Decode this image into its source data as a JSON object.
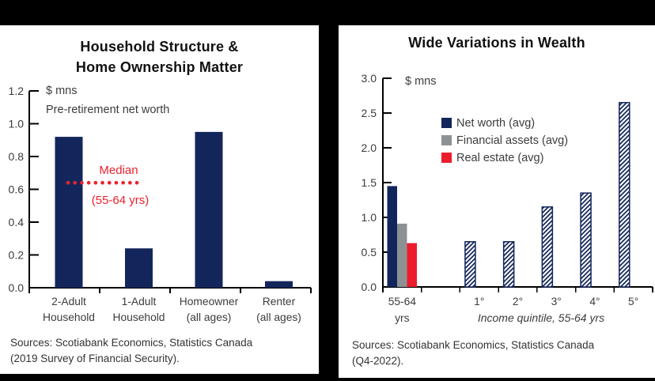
{
  "page": {
    "background_color": "#000000",
    "panel_color": "#ffffff"
  },
  "chart_data": [
    {
      "type": "bar",
      "title": "Household Structure & Home Ownership Matter",
      "title_lines": [
        "Household Structure &",
        "Home Ownership Matter"
      ],
      "unit_label": "$ mns",
      "subtitle": "Pre-retirement net worth",
      "ylim": [
        0,
        1.2
      ],
      "y_ticks": [
        "1.2",
        "1.0",
        "0.8",
        "0.6",
        "0.4",
        "0.2",
        "0.0"
      ],
      "grid": "off",
      "categories": [
        [
          "2-Adult",
          "Household"
        ],
        [
          "1-Adult",
          "Household"
        ],
        [
          "Homeowner",
          "(all ages)"
        ],
        [
          "Renter",
          "(all ages)"
        ]
      ],
      "values": [
        0.92,
        0.24,
        0.95,
        0.04
      ],
      "bar_color": "#13265c",
      "median_line": {
        "label": "Median",
        "sublabel": "(55-64 yrs)",
        "value": 0.64,
        "style": "dotted",
        "color": "#e8232e"
      },
      "source_lines": [
        "Sources: Scotiabank Economics, Statistics Canada",
        "(2019 Survey of Financial Security)."
      ]
    },
    {
      "type": "bar",
      "title": "Wide Variations in Wealth",
      "unit_label": "$ mns",
      "ylim": [
        0,
        3.0
      ],
      "y_ticks": [
        "3.0",
        "2.5",
        "2.0",
        "1.5",
        "1.0",
        "0.5",
        "0.0"
      ],
      "grid": "off",
      "legend_position": "upper-center-left",
      "legend": [
        {
          "label": "Net worth (avg)",
          "color": "#13265c"
        },
        {
          "label": "Financial assets (avg)",
          "color": "#8e9193"
        },
        {
          "label": "Real estate (avg)",
          "color": "#ec1c2d"
        }
      ],
      "group_55_64": {
        "label_lines": [
          "55-64",
          "yrs"
        ],
        "values": [
          1.45,
          0.91,
          0.63
        ]
      },
      "quintile_categories": [
        "1°",
        "2°",
        "3°",
        "4°",
        "5°"
      ],
      "quintile_net_worth": [
        0.65,
        0.65,
        1.15,
        1.35,
        2.65
      ],
      "quintile_style": "hatched-diagonal",
      "quintile_axis_note": "Income quintile, 55-64 yrs",
      "source_lines": [
        "Sources: Scotiabank Economics, Statistics Canada",
        "(Q4-2022)."
      ]
    }
  ]
}
